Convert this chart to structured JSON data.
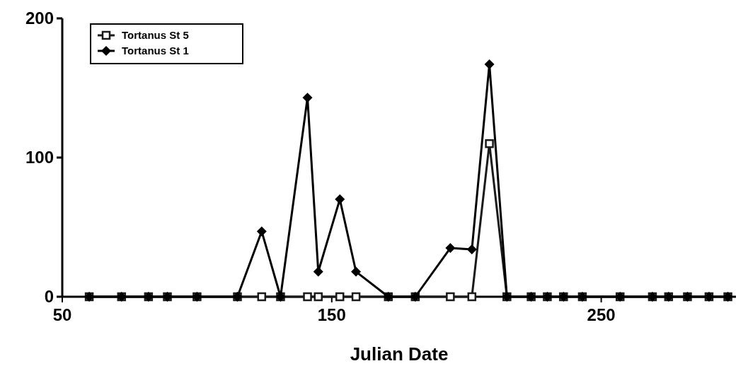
{
  "chart_data": {
    "type": "line",
    "xlabel": "Julian Date",
    "x": [
      60,
      72,
      82,
      89,
      100,
      115,
      124,
      131,
      141,
      145,
      153,
      159,
      171,
      181,
      194,
      202,
      208.5,
      215,
      224,
      230,
      236,
      243,
      257,
      269,
      275,
      282,
      290,
      297
    ],
    "series": [
      {
        "name": "Tortanus St 5",
        "color": "#1a1a1a",
        "marker": "square",
        "values": [
          0,
          0,
          0,
          0,
          0,
          0,
          0,
          0,
          0,
          0,
          0,
          0,
          0,
          0,
          0,
          0,
          110,
          0,
          0,
          0,
          0,
          0,
          0,
          0,
          0,
          0,
          0,
          0
        ]
      },
      {
        "name": "Tortanus St 1",
        "color": "#000000",
        "marker": "diamond",
        "values": [
          0,
          0,
          0,
          0,
          0,
          0,
          47,
          0,
          143,
          18,
          70,
          18,
          0,
          0,
          35,
          34,
          167,
          0,
          0,
          0,
          0,
          0,
          0,
          0,
          0,
          0,
          0,
          0
        ]
      }
    ],
    "xlim": [
      50,
      300
    ],
    "xticks": [
      50,
      150,
      250
    ],
    "ylim": [
      0,
      200
    ],
    "yticks": [
      0,
      100,
      200
    ],
    "legend": "top left",
    "line_style": "solid"
  }
}
